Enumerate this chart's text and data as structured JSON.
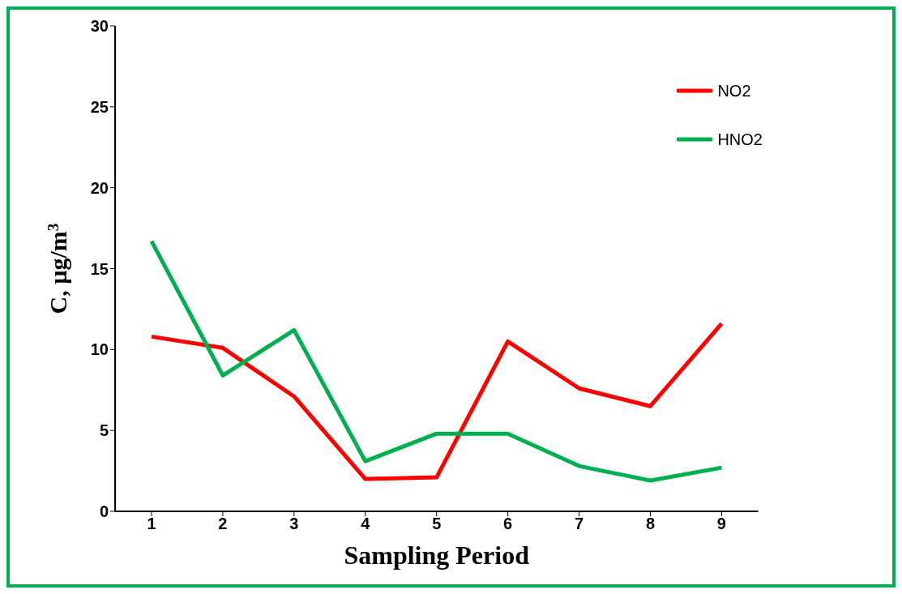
{
  "chart_data": {
    "type": "line",
    "xlabel": "Sampling Period",
    "ylabel": "C, µg/m$^{3}$",
    "categories": [
      "1",
      "2",
      "3",
      "4",
      "5",
      "6",
      "7",
      "8",
      "9"
    ],
    "series": [
      {
        "name": "NO2",
        "color": "#ff0000",
        "values": [
          10.8,
          10.1,
          7.1,
          2.0,
          2.1,
          10.5,
          7.6,
          6.5,
          11.6
        ]
      },
      {
        "name": "HNO2",
        "color": "#00b050",
        "values": [
          16.7,
          8.4,
          11.2,
          3.1,
          4.8,
          4.8,
          2.8,
          1.9,
          2.7
        ]
      }
    ],
    "ylim": [
      0,
      30
    ],
    "yticks": [
      0,
      5,
      10,
      15,
      20,
      25,
      30
    ],
    "grid": false,
    "legend": "top right",
    "marker": "none",
    "line_style": "solid"
  }
}
